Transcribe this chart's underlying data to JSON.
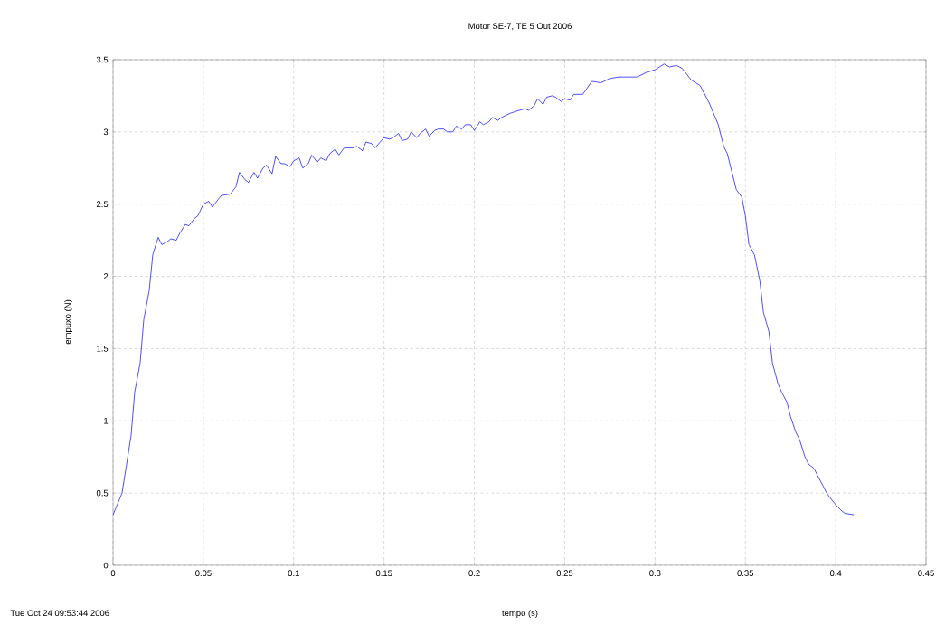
{
  "chart_data": {
    "type": "line",
    "title": "Motor SE-7, TE 5 Out 2006",
    "xlabel": "tempo (s)",
    "ylabel": "empuxo (N)",
    "annotations": [
      "Tue Oct 24 09:53:44 2006"
    ],
    "xlim": [
      0,
      0.45
    ],
    "ylim": [
      0,
      3.5
    ],
    "xticks": [
      0,
      0.05,
      0.1,
      0.15,
      0.2,
      0.25,
      0.3,
      0.35,
      0.4,
      0.45
    ],
    "yticks": [
      0,
      0.5,
      1,
      1.5,
      2,
      2.5,
      3,
      3.5
    ],
    "grid": true,
    "line_style": "solid",
    "marker": "none",
    "series": [
      {
        "color": "#0000ff",
        "x": [
          0,
          0.005,
          0.01,
          0.012,
          0.015,
          0.017,
          0.02,
          0.022,
          0.025,
          0.027,
          0.03,
          0.032,
          0.035,
          0.037,
          0.04,
          0.042,
          0.045,
          0.047,
          0.05,
          0.053,
          0.055,
          0.058,
          0.06,
          0.065,
          0.068,
          0.07,
          0.073,
          0.075,
          0.078,
          0.08,
          0.083,
          0.085,
          0.088,
          0.09,
          0.093,
          0.095,
          0.098,
          0.1,
          0.103,
          0.105,
          0.108,
          0.11,
          0.113,
          0.115,
          0.118,
          0.12,
          0.123,
          0.125,
          0.128,
          0.133,
          0.135,
          0.138,
          0.14,
          0.143,
          0.145,
          0.15,
          0.153,
          0.155,
          0.158,
          0.16,
          0.163,
          0.165,
          0.168,
          0.17,
          0.173,
          0.175,
          0.178,
          0.18,
          0.183,
          0.185,
          0.188,
          0.19,
          0.193,
          0.195,
          0.198,
          0.2,
          0.203,
          0.205,
          0.208,
          0.21,
          0.213,
          0.215,
          0.22,
          0.225,
          0.228,
          0.23,
          0.233,
          0.235,
          0.238,
          0.24,
          0.243,
          0.245,
          0.248,
          0.25,
          0.253,
          0.255,
          0.26,
          0.265,
          0.27,
          0.275,
          0.28,
          0.29,
          0.295,
          0.3,
          0.305,
          0.308,
          0.312,
          0.315,
          0.32,
          0.325,
          0.33,
          0.335,
          0.338,
          0.34,
          0.343,
          0.345,
          0.348,
          0.35,
          0.352,
          0.355,
          0.358,
          0.36,
          0.363,
          0.365,
          0.368,
          0.37,
          0.373,
          0.375,
          0.378,
          0.38,
          0.383,
          0.385,
          0.388,
          0.39,
          0.393,
          0.395,
          0.398,
          0.4,
          0.403,
          0.405,
          0.41
        ],
        "values": [
          0.35,
          0.5,
          0.9,
          1.2,
          1.4,
          1.7,
          1.9,
          2.15,
          2.27,
          2.22,
          2.24,
          2.26,
          2.25,
          2.3,
          2.36,
          2.35,
          2.4,
          2.42,
          2.5,
          2.52,
          2.48,
          2.53,
          2.56,
          2.57,
          2.62,
          2.72,
          2.67,
          2.65,
          2.72,
          2.68,
          2.75,
          2.77,
          2.71,
          2.83,
          2.78,
          2.78,
          2.76,
          2.8,
          2.82,
          2.75,
          2.78,
          2.84,
          2.79,
          2.82,
          2.8,
          2.85,
          2.88,
          2.84,
          2.89,
          2.89,
          2.9,
          2.87,
          2.93,
          2.92,
          2.89,
          2.96,
          2.95,
          2.96,
          2.99,
          2.94,
          2.95,
          3.0,
          2.96,
          2.99,
          3.02,
          2.97,
          3.01,
          3.02,
          3.02,
          3.0,
          3.0,
          3.04,
          3.02,
          3.05,
          3.05,
          3.01,
          3.07,
          3.05,
          3.07,
          3.1,
          3.08,
          3.1,
          3.13,
          3.15,
          3.16,
          3.15,
          3.18,
          3.23,
          3.19,
          3.24,
          3.25,
          3.24,
          3.21,
          3.23,
          3.22,
          3.26,
          3.26,
          3.35,
          3.34,
          3.37,
          3.38,
          3.38,
          3.41,
          3.43,
          3.47,
          3.45,
          3.46,
          3.44,
          3.36,
          3.32,
          3.2,
          3.05,
          2.9,
          2.85,
          2.7,
          2.6,
          2.55,
          2.42,
          2.22,
          2.15,
          1.97,
          1.75,
          1.62,
          1.4,
          1.26,
          1.2,
          1.13,
          1.03,
          0.92,
          0.87,
          0.75,
          0.7,
          0.67,
          0.62,
          0.55,
          0.5,
          0.45,
          0.42,
          0.38,
          0.36,
          0.35
        ]
      }
    ]
  }
}
